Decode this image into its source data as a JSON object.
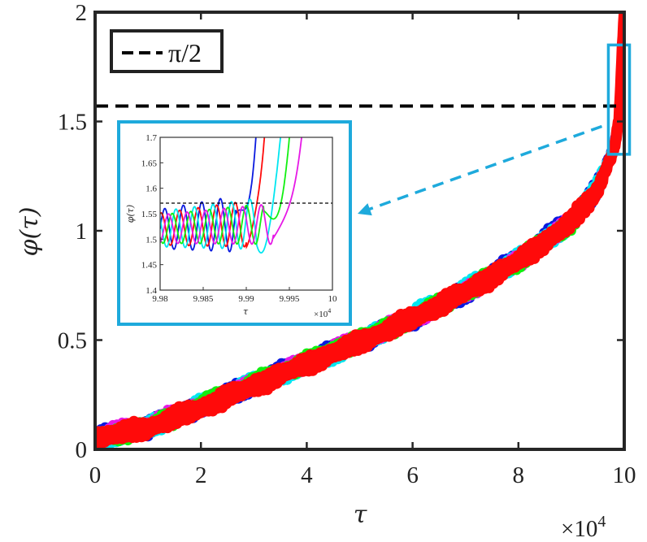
{
  "chart_data": [
    {
      "type": "line",
      "title": "",
      "xlabel": "τ",
      "ylabel": "φ(τ)",
      "x_multiplier": "×10",
      "x_multiplier_exp": "4",
      "xlim": [
        0,
        10
      ],
      "ylim": [
        0,
        2
      ],
      "x_ticks": [
        "0",
        "2",
        "4",
        "6",
        "8",
        "10"
      ],
      "y_ticks": [
        "0",
        "0.5",
        "1",
        "1.5",
        "2"
      ],
      "grid": false,
      "legend": {
        "placement": "top-left",
        "label": "π/2"
      },
      "reference_line": {
        "y": 1.5708,
        "style": "dashed",
        "color": "#000000"
      },
      "series_colors": [
        "#0a1adf",
        "#00e6f0",
        "#e619e6",
        "#10f010",
        "#ff0a0a"
      ],
      "series": [
        {
          "color": "#0a1adf",
          "x": [
            0,
            1,
            2,
            3,
            4,
            5,
            6,
            7,
            8,
            9,
            9.5,
            9.8,
            9.9,
            10
          ],
          "values": [
            0.05,
            0.1,
            0.2,
            0.3,
            0.4,
            0.49,
            0.6,
            0.72,
            0.87,
            1.05,
            1.2,
            1.38,
            1.5,
            2.0
          ]
        },
        {
          "color": "#00e6f0",
          "x": [
            0,
            1,
            2,
            3,
            4,
            5,
            6,
            7,
            8,
            9,
            9.5,
            9.8,
            9.9,
            10
          ],
          "values": [
            0.05,
            0.1,
            0.2,
            0.3,
            0.39,
            0.49,
            0.61,
            0.73,
            0.87,
            1.04,
            1.2,
            1.38,
            1.5,
            2.0
          ]
        },
        {
          "color": "#e619e6",
          "x": [
            0,
            1,
            2,
            3,
            4,
            5,
            6,
            7,
            8,
            9,
            9.5,
            9.8,
            9.9,
            10
          ],
          "values": [
            0.06,
            0.11,
            0.2,
            0.3,
            0.4,
            0.5,
            0.6,
            0.72,
            0.86,
            1.04,
            1.19,
            1.37,
            1.5,
            2.0
          ]
        },
        {
          "color": "#10f010",
          "x": [
            0,
            1,
            2,
            3,
            4,
            5,
            6,
            7,
            8,
            9,
            9.5,
            9.8,
            9.9,
            10
          ],
          "values": [
            0.05,
            0.1,
            0.2,
            0.3,
            0.4,
            0.5,
            0.6,
            0.72,
            0.86,
            1.04,
            1.19,
            1.37,
            1.5,
            2.0
          ]
        },
        {
          "color": "#ff0a0a",
          "x": [
            0,
            1,
            2,
            3,
            4,
            5,
            6,
            7,
            8,
            9,
            9.5,
            9.8,
            9.9,
            10
          ],
          "values": [
            0.05,
            0.1,
            0.19,
            0.29,
            0.39,
            0.49,
            0.6,
            0.72,
            0.86,
            1.04,
            1.19,
            1.37,
            1.5,
            2.0
          ]
        }
      ],
      "highlight_box": {
        "color": "#1eaadc",
        "x_range": [
          9.7,
          10.1
        ],
        "y_range": [
          1.35,
          1.85
        ]
      }
    },
    {
      "type": "line",
      "title": "",
      "xlabel": "τ",
      "ylabel": "φ(τ)",
      "x_multiplier": "×10",
      "x_multiplier_exp": "4",
      "xlim": [
        9.98,
        10.0
      ],
      "ylim": [
        1.4,
        1.7
      ],
      "x_ticks": [
        "9.98",
        "9.985",
        "9.99",
        "9.995",
        "10"
      ],
      "y_ticks": [
        "1.4",
        "1.45",
        "1.5",
        "1.55",
        "1.6",
        "1.65",
        "1.7"
      ],
      "grid": false,
      "reference_line": {
        "y": 1.5708,
        "style": "dashed",
        "color": "#000000"
      },
      "series": [
        {
          "color": "#0a1adf",
          "crossing_x": 9.9888,
          "end_x": 9.9915,
          "amplitude": 0.055
        },
        {
          "color": "#ff0a0a",
          "crossing_x": 9.99,
          "end_x": 9.9925,
          "amplitude": 0.045
        },
        {
          "color": "#00e6f0",
          "crossing_x": 9.9912,
          "end_x": 9.9945,
          "amplitude": 0.05
        },
        {
          "color": "#10f010",
          "crossing_x": 9.992,
          "end_x": 9.9955,
          "amplitude": 0.04
        },
        {
          "color": "#e619e6",
          "crossing_x": 9.9932,
          "end_x": 9.997,
          "amplitude": 0.04
        }
      ]
    }
  ]
}
